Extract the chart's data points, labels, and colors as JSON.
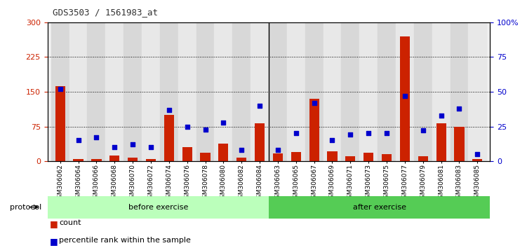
{
  "title": "GDS3503 / 1561983_at",
  "samples": [
    "GSM306062",
    "GSM306064",
    "GSM306066",
    "GSM306068",
    "GSM306070",
    "GSM306072",
    "GSM306074",
    "GSM306076",
    "GSM306078",
    "GSM306080",
    "GSM306082",
    "GSM306084",
    "GSM306063",
    "GSM306065",
    "GSM306067",
    "GSM306069",
    "GSM306071",
    "GSM306073",
    "GSM306075",
    "GSM306077",
    "GSM306079",
    "GSM306081",
    "GSM306083",
    "GSM306085"
  ],
  "count_values": [
    162,
    5,
    5,
    13,
    8,
    5,
    100,
    30,
    18,
    38,
    8,
    82,
    17,
    20,
    135,
    22,
    10,
    18,
    15,
    270,
    10,
    82,
    75,
    5
  ],
  "percentile_values": [
    52,
    15,
    17,
    10,
    12,
    10,
    37,
    25,
    23,
    28,
    8,
    40,
    8,
    20,
    42,
    15,
    19,
    20,
    20,
    47,
    22,
    33,
    38,
    5
  ],
  "before_exercise_count": 12,
  "after_exercise_count": 12,
  "left_ylim": [
    0,
    300
  ],
  "right_ylim": [
    0,
    100
  ],
  "left_yticks": [
    0,
    75,
    150,
    225,
    300
  ],
  "right_yticks": [
    0,
    25,
    50,
    75,
    100
  ],
  "right_yticklabels": [
    "0",
    "25",
    "50",
    "75",
    "100%"
  ],
  "bar_color": "#cc2200",
  "dot_color": "#0000cc",
  "before_color": "#bbffbb",
  "after_color": "#55cc55",
  "protocol_label": "protocol",
  "before_label": "before exercise",
  "after_label": "after exercise",
  "legend_count": "count",
  "legend_percentile": "percentile rank within the sample",
  "bg_color": "#e0e0e0",
  "title_color": "#333333"
}
